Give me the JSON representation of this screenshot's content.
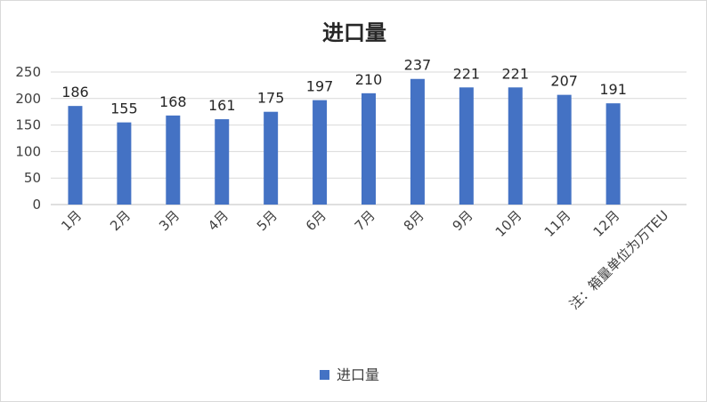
{
  "chart_data": {
    "type": "bar",
    "title": "进口量",
    "categories": [
      "1月",
      "2月",
      "3月",
      "4月",
      "5月",
      "6月",
      "7月",
      "8月",
      "9月",
      "10月",
      "11月",
      "12月",
      "注：箱量单位为万TEU"
    ],
    "series": [
      {
        "name": "进口量",
        "values": [
          186,
          155,
          168,
          161,
          175,
          197,
          210,
          237,
          221,
          221,
          207,
          191,
          null
        ]
      }
    ],
    "ylim": [
      0,
      250
    ],
    "yticks": [
      0,
      50,
      100,
      150,
      200,
      250
    ],
    "grid": true,
    "legend": "bottom",
    "color": "#4472c4"
  }
}
